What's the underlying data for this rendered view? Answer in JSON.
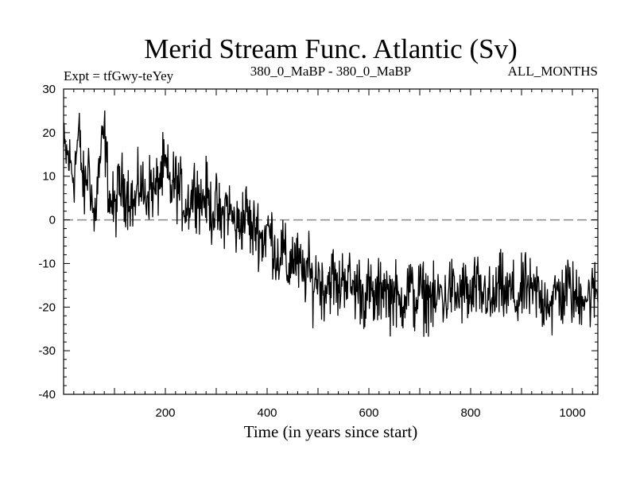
{
  "chart_data": {
    "type": "line",
    "title": "Merid Stream Func. Atlantic (Sv)",
    "subtitle_left": "Expt = tfGwy-teYey",
    "subtitle_center": "380_0_MaBP - 380_0_MaBP",
    "subtitle_right": "ALL_MONTHS",
    "xlabel": "Time (in years since start)",
    "ylabel": "",
    "xlim": [
      0,
      1050
    ],
    "ylim": [
      -40,
      30
    ],
    "x_ticks": [
      200,
      400,
      600,
      800,
      1000
    ],
    "x_tick_labels": [
      "200",
      "400",
      "600",
      "800",
      "1000"
    ],
    "y_ticks": [
      -40,
      -30,
      -20,
      -10,
      0,
      10,
      20,
      30
    ],
    "y_tick_labels": [
      "-40",
      "-30",
      "-20",
      "-10",
      "0",
      "10",
      "20",
      "30"
    ],
    "reference_line": {
      "y": 0,
      "style": "dashed",
      "color": "#888888"
    },
    "line_color": "#000000",
    "grid": false,
    "series": [
      {
        "name": "Merid Stream Func. Atlantic",
        "x": [
          0,
          10,
          20,
          30,
          40,
          50,
          60,
          70,
          80,
          90,
          100,
          110,
          120,
          130,
          140,
          150,
          160,
          170,
          180,
          190,
          200,
          210,
          220,
          230,
          240,
          250,
          260,
          270,
          280,
          290,
          300,
          310,
          320,
          330,
          340,
          350,
          360,
          370,
          380,
          390,
          400,
          410,
          420,
          430,
          440,
          450,
          460,
          470,
          480,
          490,
          500,
          510,
          520,
          530,
          540,
          550,
          560,
          570,
          580,
          590,
          600,
          610,
          620,
          630,
          640,
          650,
          660,
          670,
          680,
          690,
          700,
          710,
          720,
          730,
          740,
          750,
          760,
          770,
          780,
          790,
          800,
          810,
          820,
          830,
          840,
          850,
          860,
          870,
          880,
          890,
          900,
          910,
          920,
          930,
          940,
          950,
          960,
          970,
          980,
          990,
          1000,
          1010,
          1020,
          1030,
          1040,
          1050
        ],
        "y": [
          16,
          14,
          10,
          20,
          6,
          13,
          -1,
          12,
          20,
          5,
          2,
          8,
          7,
          6,
          3,
          9,
          5,
          8,
          6,
          10,
          12,
          7,
          9,
          6,
          3,
          5,
          8,
          4,
          6,
          2,
          3,
          -1,
          4,
          1,
          -2,
          0,
          2,
          -3,
          -1,
          -5,
          -2,
          -4,
          -9,
          -6,
          -12,
          -8,
          -10,
          -13,
          -11,
          -15,
          -12,
          -16,
          -14,
          -13,
          -17,
          -12,
          -14,
          -16,
          -15,
          -18,
          -16,
          -19,
          -17,
          -14,
          -18,
          -16,
          -20,
          -17,
          -15,
          -19,
          -16,
          -18,
          -17,
          -20,
          -16,
          -19,
          -15,
          -18,
          -17,
          -16,
          -19,
          -15,
          -18,
          -16,
          -20,
          -17,
          -15,
          -18,
          -16,
          -19,
          -17,
          -15,
          -18,
          -16,
          -19,
          -17,
          -20,
          -16,
          -18,
          -15,
          -17,
          -19,
          -16,
          -18,
          -17,
          -16
        ]
      }
    ]
  }
}
